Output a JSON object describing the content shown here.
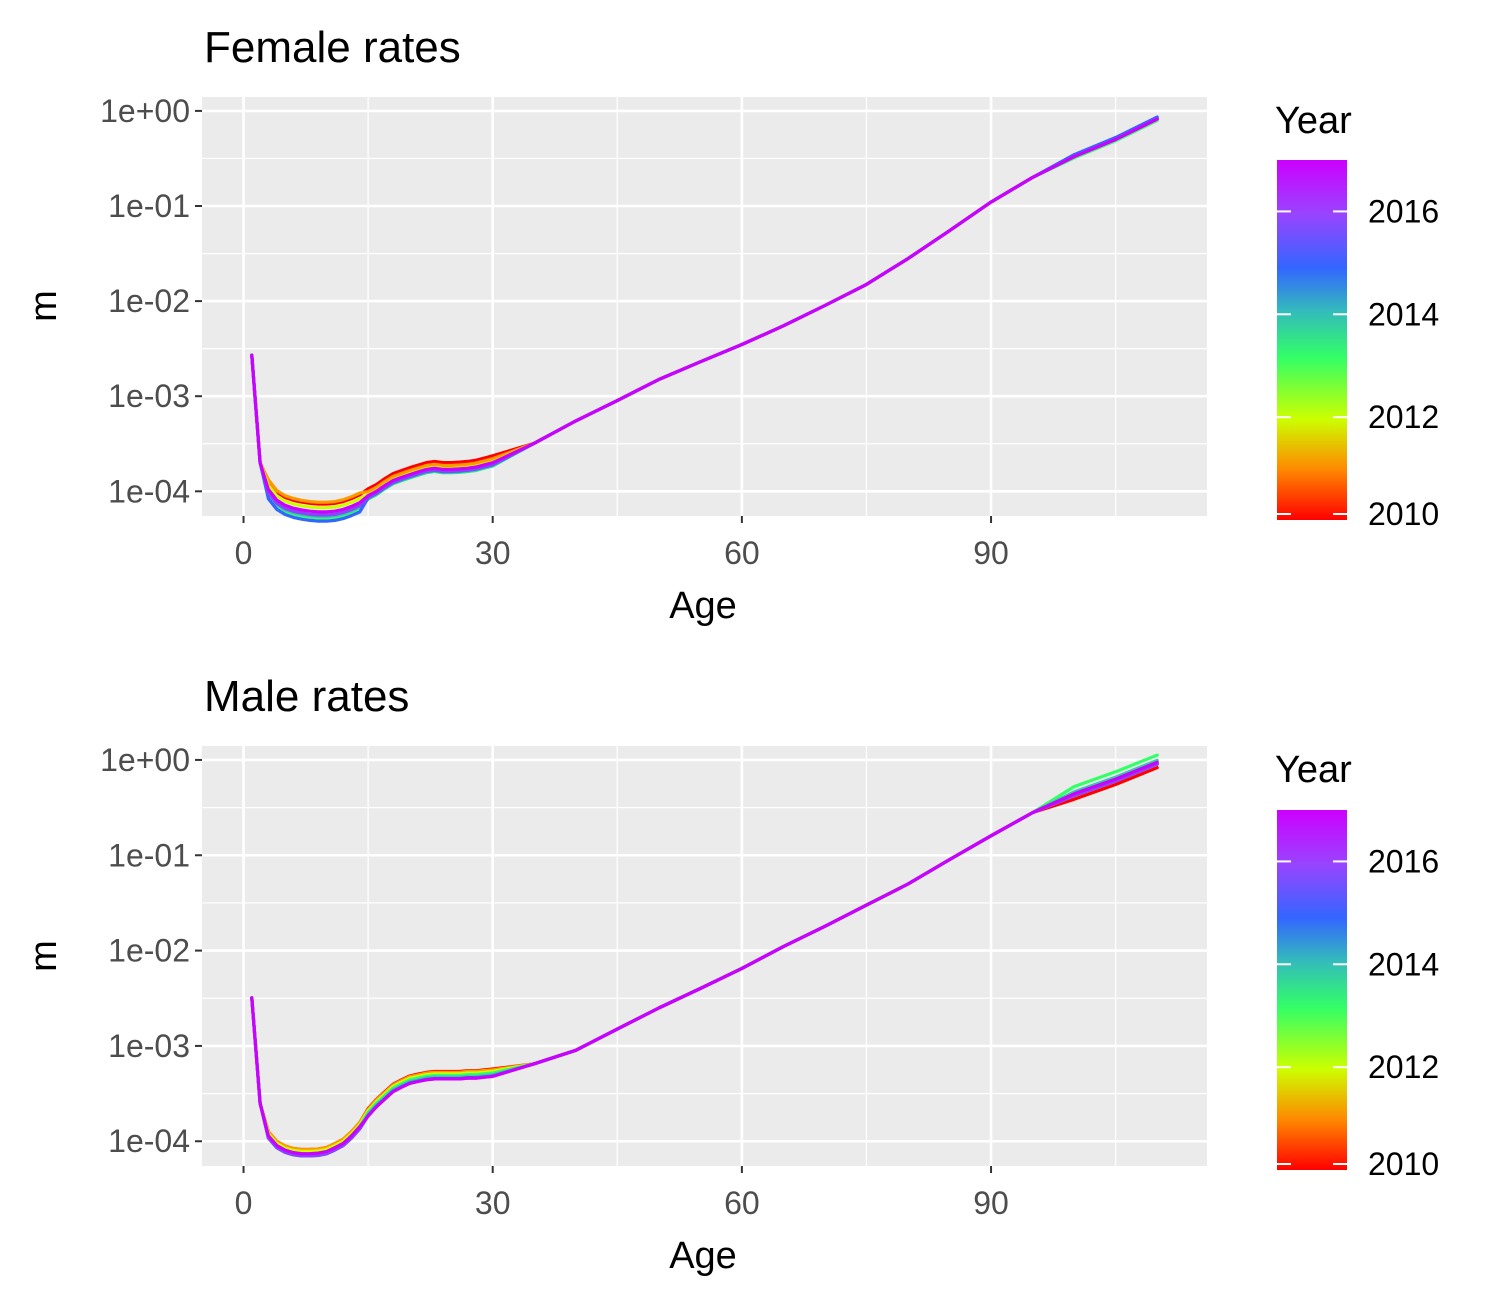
{
  "chart_data": [
    {
      "type": "line",
      "title": "Female rates",
      "xlabel": "Age",
      "ylabel": "m",
      "y_scale": "log10",
      "xlim": [
        -5,
        116
      ],
      "ylim": [
        5.5e-05,
        1.4
      ],
      "x_ticks": [
        0,
        30,
        60,
        90
      ],
      "x_tick_labels": [
        "0",
        "30",
        "60",
        "90"
      ],
      "y_ticks": [
        0.0001,
        0.001,
        0.01,
        0.1,
        1
      ],
      "y_tick_labels": [
        "1e-04",
        "1e-03",
        "1e-02",
        "1e-01",
        "1e+00"
      ],
      "grid": true,
      "legend": {
        "title": "Year",
        "position": "right",
        "type": "colorbar",
        "range": [
          2010,
          2017
        ],
        "tick_values": [
          2010,
          2012,
          2014,
          2016
        ],
        "tick_labels": [
          "2010",
          "2012",
          "2014",
          "2016"
        ]
      },
      "base_curve": {
        "x": [
          1,
          2,
          3,
          4,
          5,
          6,
          7,
          8,
          9,
          10,
          11,
          12,
          13,
          14,
          15,
          16,
          17,
          18,
          19,
          20,
          21,
          22,
          23,
          24,
          25,
          26,
          27,
          28,
          29,
          30,
          35,
          40,
          45,
          50,
          55,
          60,
          65,
          70,
          75,
          80,
          85,
          90,
          95,
          100,
          105,
          110
        ],
        "y": [
          0.0027,
          0.0002,
          0.00011,
          8.5e-05,
          7.5e-05,
          7e-05,
          6.7e-05,
          6.5e-05,
          6.4e-05,
          6.4e-05,
          6.5e-05,
          6.8e-05,
          7.3e-05,
          8e-05,
          9e-05,
          0.0001,
          0.000115,
          0.00013,
          0.00014,
          0.00015,
          0.00016,
          0.00017,
          0.000175,
          0.00017,
          0.00017,
          0.000172,
          0.000175,
          0.00018,
          0.00019,
          0.0002,
          0.00032,
          0.00055,
          0.0009,
          0.0015,
          0.0023,
          0.0035,
          0.0055,
          0.009,
          0.015,
          0.028,
          0.055,
          0.11,
          0.2,
          0.33,
          0.5,
          0.82
        ]
      },
      "series": [
        {
          "year": 2010,
          "color": "#ff0000",
          "kid_factor": 1.15,
          "teen_factor": 1.18,
          "old_factor": 1.0
        },
        {
          "year": 2011,
          "color": "#ff9900",
          "kid_factor": 1.2,
          "teen_factor": 1.1,
          "old_factor": 1.0
        },
        {
          "year": 2012,
          "color": "#ccff00",
          "kid_factor": 1.05,
          "teen_factor": 1.02,
          "old_factor": 0.98
        },
        {
          "year": 2013,
          "color": "#33ff66",
          "kid_factor": 0.82,
          "teen_factor": 0.92,
          "old_factor": 0.97
        },
        {
          "year": 2014,
          "color": "#33ccaa",
          "kid_factor": 0.85,
          "teen_factor": 0.93,
          "old_factor": 1.02
        },
        {
          "year": 2015,
          "color": "#3366ff",
          "kid_factor": 0.76,
          "teen_factor": 0.95,
          "old_factor": 1.05
        },
        {
          "year": 2016,
          "color": "#8844ff",
          "kid_factor": 0.88,
          "teen_factor": 0.96,
          "old_factor": 1.01
        },
        {
          "year": 2017,
          "color": "#cc00ff",
          "kid_factor": 0.95,
          "teen_factor": 1.0,
          "old_factor": 1.0
        }
      ]
    },
    {
      "type": "line",
      "title": "Male rates",
      "xlabel": "Age",
      "ylabel": "m",
      "y_scale": "log10",
      "xlim": [
        -5,
        116
      ],
      "ylim": [
        5.5e-05,
        1.4
      ],
      "x_ticks": [
        0,
        30,
        60,
        90
      ],
      "x_tick_labels": [
        "0",
        "30",
        "60",
        "90"
      ],
      "y_ticks": [
        0.0001,
        0.001,
        0.01,
        0.1,
        1
      ],
      "y_tick_labels": [
        "1e-04",
        "1e-03",
        "1e-02",
        "1e-01",
        "1e+00"
      ],
      "grid": true,
      "legend": {
        "title": "Year",
        "position": "right",
        "type": "colorbar",
        "range": [
          2010,
          2017
        ],
        "tick_values": [
          2010,
          2012,
          2014,
          2016
        ],
        "tick_labels": [
          "2010",
          "2012",
          "2014",
          "2016"
        ]
      },
      "base_curve": {
        "x": [
          1,
          2,
          3,
          4,
          5,
          6,
          7,
          8,
          9,
          10,
          11,
          12,
          13,
          14,
          15,
          16,
          17,
          18,
          19,
          20,
          21,
          22,
          23,
          24,
          25,
          26,
          27,
          28,
          29,
          30,
          35,
          40,
          45,
          50,
          55,
          60,
          65,
          70,
          75,
          80,
          85,
          90,
          95,
          100,
          105,
          110
        ],
        "y": [
          0.0032,
          0.00025,
          0.00012,
          9.5e-05,
          8.5e-05,
          8e-05,
          7.8e-05,
          7.8e-05,
          7.9e-05,
          8.2e-05,
          9e-05,
          0.0001,
          0.00012,
          0.00015,
          0.0002,
          0.00025,
          0.0003,
          0.00036,
          0.0004,
          0.00044,
          0.00046,
          0.00048,
          0.00049,
          0.00049,
          0.00049,
          0.00049,
          0.0005,
          0.0005,
          0.00051,
          0.00052,
          0.00065,
          0.0009,
          0.0015,
          0.0025,
          0.004,
          0.0065,
          0.011,
          0.018,
          0.03,
          0.05,
          0.09,
          0.16,
          0.28,
          0.42,
          0.6,
          0.9
        ]
      },
      "series": [
        {
          "year": 2010,
          "color": "#ff0000",
          "kid_factor": 1.05,
          "teen_factor": 1.1,
          "old_factor": 0.92
        },
        {
          "year": 2011,
          "color": "#ff9900",
          "kid_factor": 1.05,
          "teen_factor": 1.08,
          "old_factor": 1.0
        },
        {
          "year": 2012,
          "color": "#ccff00",
          "kid_factor": 1.0,
          "teen_factor": 1.04,
          "old_factor": 1.05
        },
        {
          "year": 2013,
          "color": "#33ff66",
          "kid_factor": 0.95,
          "teen_factor": 1.0,
          "old_factor": 1.25
        },
        {
          "year": 2014,
          "color": "#33ccaa",
          "kid_factor": 0.92,
          "teen_factor": 0.96,
          "old_factor": 1.1
        },
        {
          "year": 2015,
          "color": "#3366ff",
          "kid_factor": 0.9,
          "teen_factor": 0.93,
          "old_factor": 1.02
        },
        {
          "year": 2016,
          "color": "#8844ff",
          "kid_factor": 0.9,
          "teen_factor": 0.92,
          "old_factor": 1.0
        },
        {
          "year": 2017,
          "color": "#cc00ff",
          "kid_factor": 0.95,
          "teen_factor": 0.92,
          "old_factor": 1.05
        }
      ]
    }
  ]
}
